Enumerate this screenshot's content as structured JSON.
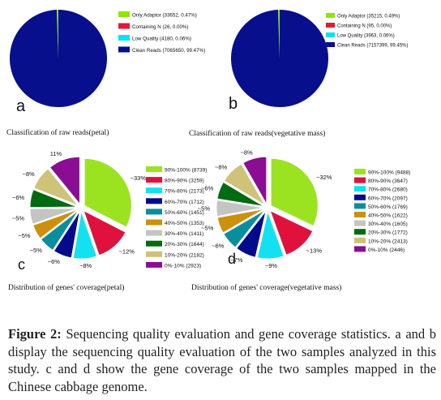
{
  "figure": {
    "caption_label": "Figure 2:",
    "caption_text": " Sequencing quality evaluation and gene coverage statistics. a and b display the sequencing quality evaluation of the two samples analyzed in this study. c and d show the gene coverage of the two samples mapped in the Chinese cabbage genome."
  },
  "chart_data": [
    {
      "type": "pie",
      "panel_letter": "a",
      "title": "Classification of raw reads(petal)",
      "legend_position": "top-right",
      "series": [
        {
          "name": "Only Adaptor (33652, 0.47%)",
          "value": 33652,
          "color": "#8fe600"
        },
        {
          "name": "Containing N (26, 0.00%)",
          "value": 26,
          "color": "#e31a3a"
        },
        {
          "name": "Low Quality (4180, 0.06%)",
          "value": 4180,
          "color": "#00e5ee"
        },
        {
          "name": "Clean Reads (7065650, 99.47%)",
          "value": 7065650,
          "color": "#080f8c"
        }
      ],
      "slice_labels": []
    },
    {
      "type": "pie",
      "panel_letter": "b",
      "title": "Classification of raw reads(vegetative mass)",
      "legend_position": "top-right",
      "series": [
        {
          "name": "Only Adaptor (35215, 0.49%)",
          "value": 35215,
          "color": "#8fe600"
        },
        {
          "name": "Containing N (95, 0.00%)",
          "value": 95,
          "color": "#e31a3a"
        },
        {
          "name": "Low Quality (3963, 0.06%)",
          "value": 3963,
          "color": "#00e5ee"
        },
        {
          "name": "Clean Reads (7157399, 99.45%)",
          "value": 7157399,
          "color": "#080f8c"
        }
      ],
      "slice_labels": []
    },
    {
      "type": "pie",
      "panel_letter": "c",
      "title": "Distribution of genes' coverage(petal)",
      "legend_position": "right",
      "series": [
        {
          "name": "90%-100% (8739)",
          "value": 8739,
          "color": "#9be320"
        },
        {
          "name": "80%-90% (3259)",
          "value": 3259,
          "color": "#e0113d"
        },
        {
          "name": "70%-80% (2173)",
          "value": 2173,
          "color": "#14e1ef"
        },
        {
          "name": "60%-70% (1712)",
          "value": 1712,
          "color": "#030a8c"
        },
        {
          "name": "50%-60% (1451)",
          "value": 1451,
          "color": "#0a8e9e"
        },
        {
          "name": "40%-50% (1353)",
          "value": 1353,
          "color": "#cc900d"
        },
        {
          "name": "30%-40% (1411)",
          "value": 1411,
          "color": "#c4c4c4"
        },
        {
          "name": "20%-30% (1644)",
          "value": 1644,
          "color": "#006b10"
        },
        {
          "name": "10%-20% (2182)",
          "value": 2182,
          "color": "#cfc279"
        },
        {
          "name": "0%-10% (2923)",
          "value": 2923,
          "color": "#8b0d94"
        }
      ],
      "slice_labels": [
        "~33%",
        "~12%",
        "~8%",
        "~6%",
        "~5%",
        "~5%",
        "~5%",
        "~6%",
        "~8%",
        "11%"
      ]
    },
    {
      "type": "pie",
      "panel_letter": "d",
      "title": "Distribution of genes' coverage(vegetative mass)",
      "legend_position": "right",
      "series": [
        {
          "name": "90%-100% (9488)",
          "value": 9488,
          "color": "#9be320"
        },
        {
          "name": "80%-90% (3647)",
          "value": 3647,
          "color": "#e0113d"
        },
        {
          "name": "70%-80% (2680)",
          "value": 2680,
          "color": "#14e1ef"
        },
        {
          "name": "60%-70% (2097)",
          "value": 2097,
          "color": "#030a8c"
        },
        {
          "name": "50%-60% (1769)",
          "value": 1769,
          "color": "#0a8e9e"
        },
        {
          "name": "40%-50% (1622)",
          "value": 1622,
          "color": "#cc900d"
        },
        {
          "name": "30%-40% (1605)",
          "value": 1605,
          "color": "#c4c4c4"
        },
        {
          "name": "20%-30% (1772)",
          "value": 1772,
          "color": "#006b10"
        },
        {
          "name": "10%-20% (2413)",
          "value": 2413,
          "color": "#cfc279"
        },
        {
          "name": "0%-10% (2446)",
          "value": 2446,
          "color": "#8b0d94"
        }
      ],
      "slice_labels": [
        "~32%",
        "~13%",
        "~9%",
        "~7%",
        "~6%",
        "~5%",
        "~5%",
        "~6%",
        "~8%",
        "~8%"
      ]
    }
  ]
}
